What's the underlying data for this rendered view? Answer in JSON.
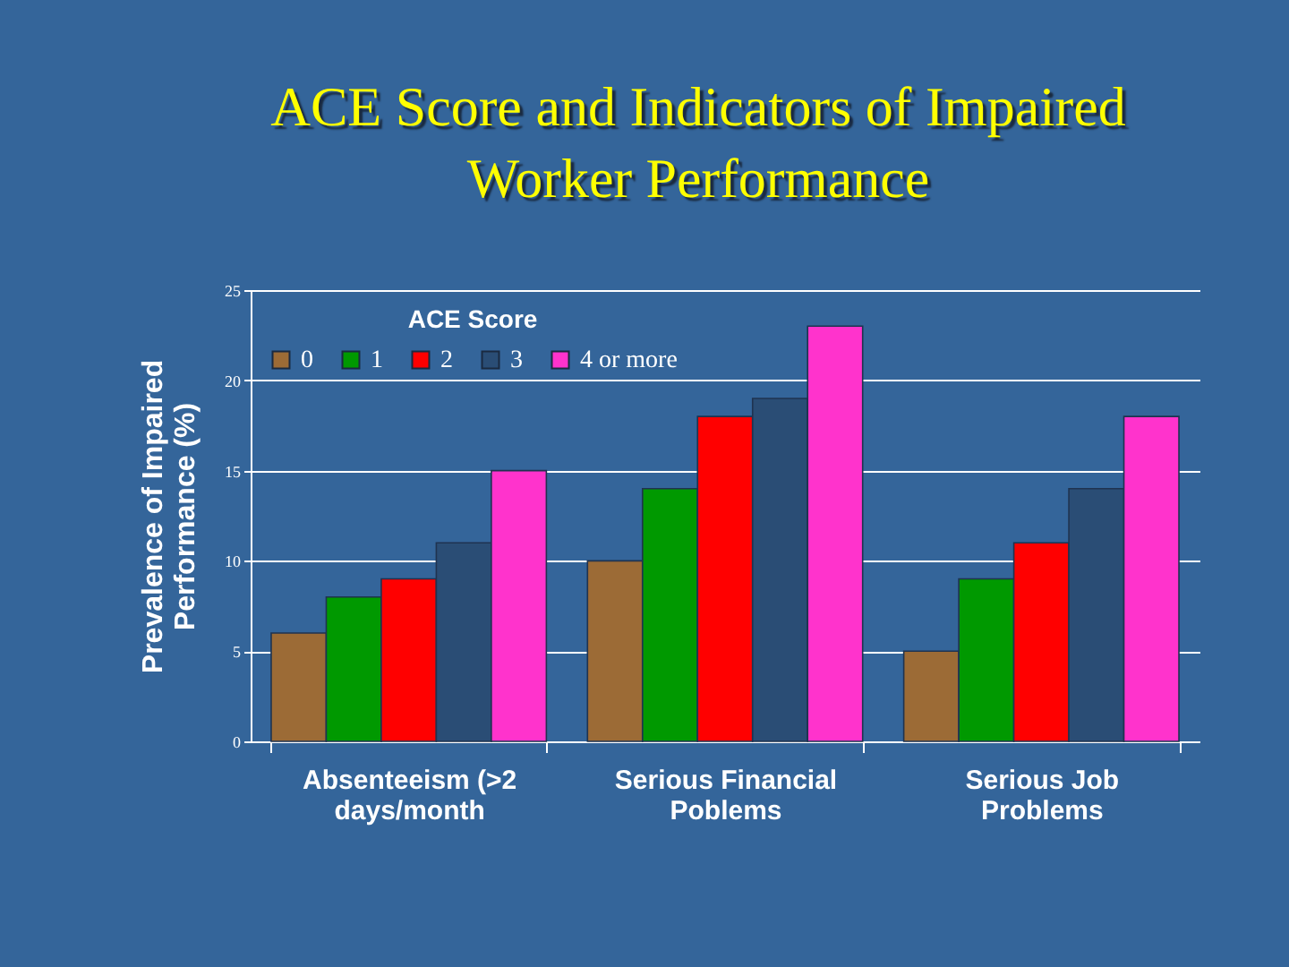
{
  "chart_data": {
    "type": "bar",
    "title": "ACE Score and Indicators of Impaired Worker Performance",
    "ylabel": "Prevalence of  Impaired Performance (%)",
    "legend_title": "ACE Score",
    "legend": "top left",
    "grid": "y",
    "categories": [
      "Absenteeism (>2 days/month",
      "Serious Financial Poblems",
      "Serious Job Problems"
    ],
    "ylim": [
      0,
      25
    ],
    "yticks": [
      0,
      5,
      10,
      15,
      20,
      25
    ],
    "series": [
      {
        "name": "0",
        "color": "#9c6b36",
        "values": [
          6,
          10,
          5
        ]
      },
      {
        "name": "1",
        "color": "#009900",
        "values": [
          8,
          14,
          9
        ]
      },
      {
        "name": "2",
        "color": "#ff0000",
        "values": [
          9,
          18,
          11
        ]
      },
      {
        "name": "3",
        "color": "#2a4d75",
        "values": [
          11,
          19,
          14
        ]
      },
      {
        "name": "4 or more",
        "color": "#ff33cc",
        "values": [
          15,
          23,
          18
        ]
      }
    ]
  }
}
